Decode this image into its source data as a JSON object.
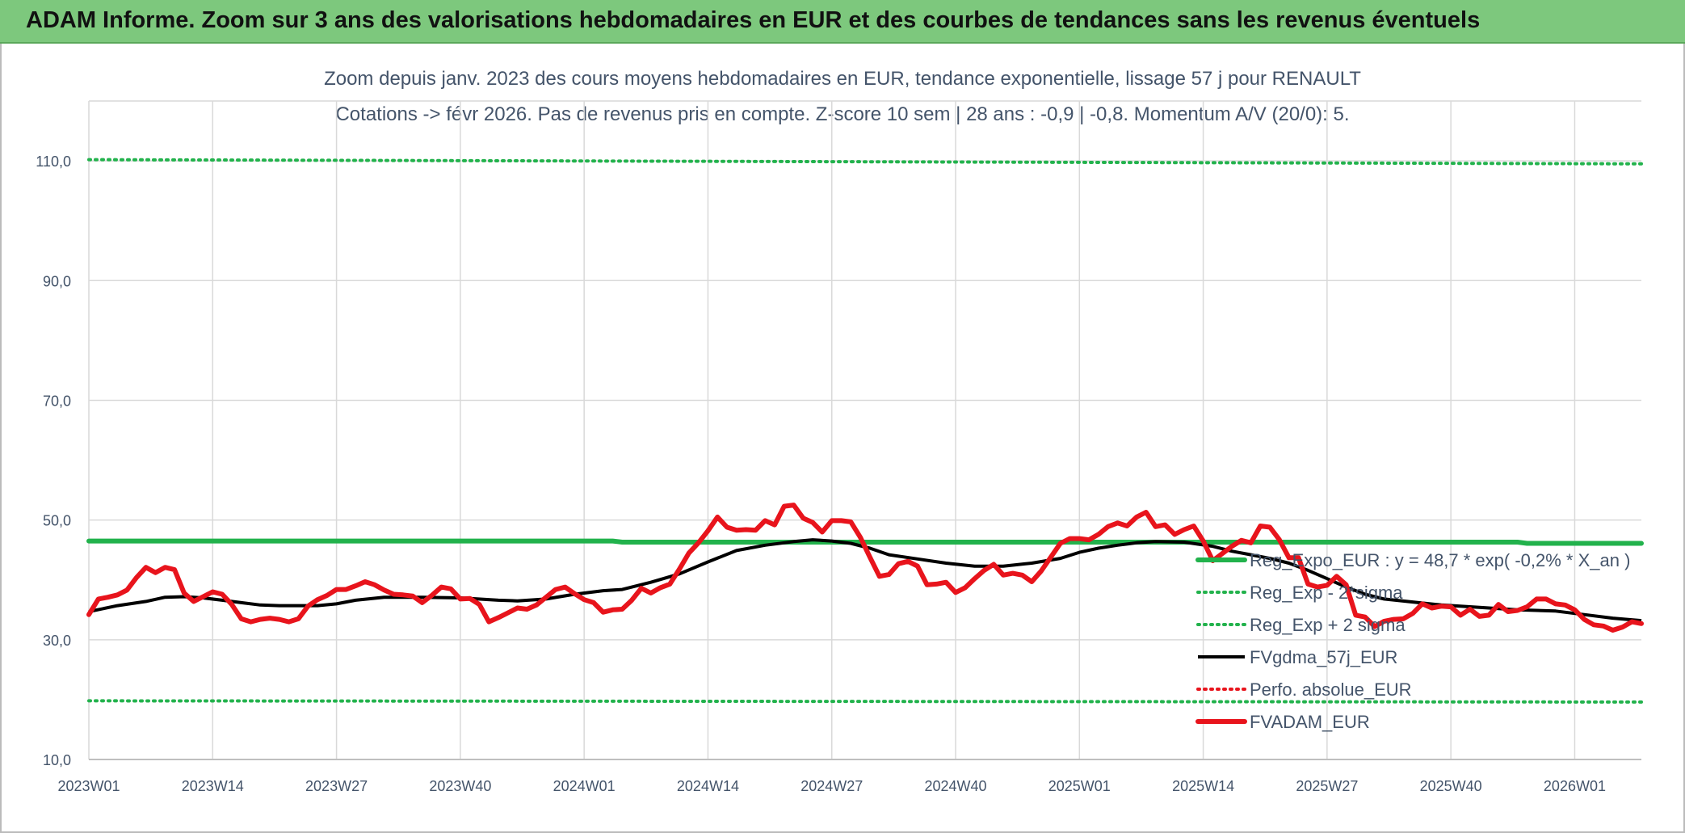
{
  "banner": {
    "title": "ADAM Informe. Zoom sur 3 ans des valorisations hebdomadaires en EUR et des courbes de tendances sans les revenus éventuels"
  },
  "colors": {
    "banner_bg": "#7dc87d",
    "trend_green": "#22b24c",
    "price_red": "#e8141c",
    "smooth_black": "#000000",
    "text": "#44546a"
  },
  "chart_data": {
    "type": "line",
    "title": "Zoom depuis janv. 2023 des cours moyens hebdomadaires en EUR, tendance exponentielle, lissage 57 j pour RENAULT",
    "subtitle": "Cotations -> févr 2026. Pas de revenus pris en compte. Z-score 10 sem | 28 ans : -0,9 | -0,8. Momentum A/V (20/0): 5.",
    "xlabel": "",
    "ylabel": "",
    "ylim": [
      10,
      120
    ],
    "yticks": [
      "10,0",
      "30,0",
      "50,0",
      "70,0",
      "90,0",
      "110,0"
    ],
    "ytick_values": [
      10,
      30,
      50,
      70,
      90,
      110
    ],
    "x_weeks": 164,
    "xticks": [
      "2023W01",
      "2023W14",
      "2023W27",
      "2023W40",
      "2024W01",
      "2024W14",
      "2024W27",
      "2024W40",
      "2025W01",
      "2025W14",
      "2025W27",
      "2025W40",
      "2026W01"
    ],
    "xtick_positions": [
      0,
      13,
      26,
      39,
      52,
      65,
      78,
      91,
      104,
      117,
      130,
      143,
      156
    ],
    "grid": true,
    "legend_position": "right",
    "series": [
      {
        "name": "Reg_Expo_EUR : y = 48,7 * exp( -0,2% *  X_an )",
        "style": "solid-thick",
        "color": "#22b24c",
        "points": [
          [
            0,
            46.5
          ],
          [
            55,
            46.5
          ],
          [
            56,
            46.3
          ],
          [
            150,
            46.3
          ],
          [
            151,
            46.1
          ],
          [
            163,
            46.1
          ]
        ]
      },
      {
        "name": "Reg_Exp - 2*sigma",
        "style": "dotted",
        "color": "#22b24c",
        "points": [
          [
            0,
            19.8
          ],
          [
            163,
            19.6
          ]
        ]
      },
      {
        "name": "Reg_Exp + 2 sigma",
        "style": "dotted",
        "color": "#22b24c",
        "points": [
          [
            0,
            110.2
          ],
          [
            163,
            109.5
          ]
        ]
      },
      {
        "name": "FVgdma_57j_EUR",
        "style": "solid",
        "color": "#000000",
        "points": [
          [
            0,
            34.7
          ],
          [
            3,
            35.7
          ],
          [
            6,
            36.4
          ],
          [
            8,
            37.1
          ],
          [
            10,
            37.2
          ],
          [
            12,
            37.0
          ],
          [
            14,
            36.6
          ],
          [
            16,
            36.2
          ],
          [
            18,
            35.8
          ],
          [
            20,
            35.7
          ],
          [
            24,
            35.7
          ],
          [
            26,
            36.0
          ],
          [
            28,
            36.6
          ],
          [
            31,
            37.1
          ],
          [
            35,
            37.1
          ],
          [
            39,
            37.0
          ],
          [
            43,
            36.6
          ],
          [
            45,
            36.5
          ],
          [
            48,
            36.8
          ],
          [
            51,
            37.6
          ],
          [
            54,
            38.2
          ],
          [
            56,
            38.4
          ],
          [
            59,
            39.6
          ],
          [
            62,
            41.0
          ],
          [
            65,
            43.0
          ],
          [
            68,
            44.9
          ],
          [
            71,
            45.8
          ],
          [
            74,
            46.4
          ],
          [
            76,
            46.7
          ],
          [
            78,
            46.5
          ],
          [
            80,
            46.1
          ],
          [
            82,
            45.3
          ],
          [
            84,
            44.2
          ],
          [
            87,
            43.5
          ],
          [
            90,
            42.8
          ],
          [
            93,
            42.3
          ],
          [
            96,
            42.3
          ],
          [
            99,
            42.8
          ],
          [
            102,
            43.6
          ],
          [
            104,
            44.6
          ],
          [
            106,
            45.3
          ],
          [
            108,
            45.8
          ],
          [
            110,
            46.2
          ],
          [
            112,
            46.4
          ],
          [
            115,
            46.3
          ],
          [
            118,
            45.6
          ],
          [
            120,
            44.8
          ],
          [
            122,
            44.2
          ],
          [
            124,
            43.6
          ],
          [
            126,
            42.8
          ],
          [
            128,
            41.6
          ],
          [
            130,
            40.2
          ],
          [
            132,
            38.8
          ],
          [
            134,
            37.6
          ],
          [
            136,
            36.8
          ],
          [
            139,
            36.3
          ],
          [
            142,
            35.8
          ],
          [
            146,
            35.4
          ],
          [
            150,
            35.0
          ],
          [
            154,
            34.8
          ],
          [
            157,
            34.2
          ],
          [
            160,
            33.6
          ],
          [
            163,
            33.2
          ]
        ]
      },
      {
        "name": "Perfo. absolue_EUR",
        "style": "dotted",
        "color": "#e8141c",
        "points": []
      },
      {
        "name": "FVADAM_EUR",
        "style": "solid-thick",
        "color": "#e8141c",
        "points": [
          [
            0,
            34.2
          ],
          [
            1,
            36.8
          ],
          [
            2,
            37.1
          ],
          [
            3,
            37.5
          ],
          [
            4,
            38.3
          ],
          [
            5,
            40.4
          ],
          [
            6,
            42.1
          ],
          [
            7,
            41.2
          ],
          [
            8,
            42.1
          ],
          [
            9,
            41.7
          ],
          [
            10,
            37.8
          ],
          [
            11,
            36.4
          ],
          [
            12,
            37.2
          ],
          [
            13,
            38.0
          ],
          [
            14,
            37.6
          ],
          [
            15,
            35.9
          ],
          [
            16,
            33.5
          ],
          [
            17,
            33.0
          ],
          [
            18,
            33.4
          ],
          [
            19,
            33.6
          ],
          [
            20,
            33.4
          ],
          [
            21,
            33.0
          ],
          [
            22,
            33.5
          ],
          [
            23,
            35.6
          ],
          [
            24,
            36.7
          ],
          [
            25,
            37.4
          ],
          [
            26,
            38.4
          ],
          [
            27,
            38.4
          ],
          [
            28,
            39.0
          ],
          [
            29,
            39.7
          ],
          [
            30,
            39.2
          ],
          [
            31,
            38.3
          ],
          [
            32,
            37.6
          ],
          [
            33,
            37.5
          ],
          [
            34,
            37.3
          ],
          [
            35,
            36.2
          ],
          [
            36,
            37.4
          ],
          [
            37,
            38.8
          ],
          [
            38,
            38.5
          ],
          [
            39,
            36.8
          ],
          [
            40,
            36.9
          ],
          [
            41,
            35.9
          ],
          [
            42,
            33.0
          ],
          [
            43,
            33.7
          ],
          [
            44,
            34.5
          ],
          [
            45,
            35.3
          ],
          [
            46,
            35.1
          ],
          [
            47,
            35.8
          ],
          [
            48,
            37.1
          ],
          [
            49,
            38.4
          ],
          [
            50,
            38.8
          ],
          [
            51,
            37.7
          ],
          [
            52,
            36.7
          ],
          [
            53,
            36.2
          ],
          [
            54,
            34.6
          ],
          [
            55,
            35.0
          ],
          [
            56,
            35.1
          ],
          [
            57,
            36.6
          ],
          [
            58,
            38.6
          ],
          [
            59,
            37.8
          ],
          [
            60,
            38.7
          ],
          [
            61,
            39.3
          ],
          [
            62,
            41.8
          ],
          [
            63,
            44.5
          ],
          [
            64,
            46.2
          ],
          [
            65,
            48.2
          ],
          [
            66,
            50.5
          ],
          [
            67,
            48.8
          ],
          [
            68,
            48.3
          ],
          [
            69,
            48.4
          ],
          [
            70,
            48.3
          ],
          [
            71,
            49.9
          ],
          [
            72,
            49.2
          ],
          [
            73,
            52.3
          ],
          [
            74,
            52.5
          ],
          [
            75,
            50.3
          ],
          [
            76,
            49.6
          ],
          [
            77,
            48.0
          ],
          [
            78,
            49.9
          ],
          [
            79,
            49.9
          ],
          [
            80,
            49.7
          ],
          [
            81,
            47.1
          ],
          [
            82,
            43.8
          ],
          [
            83,
            40.6
          ],
          [
            84,
            40.9
          ],
          [
            85,
            42.7
          ],
          [
            86,
            43.1
          ],
          [
            87,
            42.3
          ],
          [
            88,
            39.2
          ],
          [
            89,
            39.3
          ],
          [
            90,
            39.6
          ],
          [
            91,
            37.9
          ],
          [
            92,
            38.7
          ],
          [
            93,
            40.2
          ],
          [
            94,
            41.6
          ],
          [
            95,
            42.6
          ],
          [
            96,
            40.8
          ],
          [
            97,
            41.1
          ],
          [
            98,
            40.8
          ],
          [
            99,
            39.7
          ],
          [
            100,
            41.5
          ],
          [
            101,
            43.8
          ],
          [
            102,
            46.1
          ],
          [
            103,
            46.9
          ],
          [
            104,
            46.9
          ],
          [
            105,
            46.7
          ],
          [
            106,
            47.6
          ],
          [
            107,
            48.9
          ],
          [
            108,
            49.5
          ],
          [
            109,
            49.0
          ],
          [
            110,
            50.5
          ],
          [
            111,
            51.3
          ],
          [
            112,
            48.9
          ],
          [
            113,
            49.2
          ],
          [
            114,
            47.6
          ],
          [
            115,
            48.4
          ],
          [
            116,
            49.0
          ],
          [
            117,
            46.5
          ],
          [
            118,
            43.2
          ],
          [
            119,
            44.4
          ],
          [
            120,
            45.6
          ],
          [
            121,
            46.6
          ],
          [
            122,
            46.2
          ],
          [
            123,
            49.0
          ],
          [
            124,
            48.8
          ],
          [
            125,
            46.7
          ],
          [
            126,
            43.7
          ],
          [
            127,
            43.7
          ],
          [
            128,
            39.3
          ],
          [
            129,
            38.8
          ],
          [
            130,
            39.1
          ],
          [
            131,
            40.6
          ],
          [
            132,
            39.2
          ],
          [
            133,
            34.1
          ],
          [
            134,
            33.8
          ],
          [
            135,
            32.2
          ],
          [
            136,
            33.1
          ],
          [
            137,
            33.4
          ],
          [
            138,
            33.5
          ],
          [
            139,
            34.4
          ],
          [
            140,
            36.0
          ],
          [
            141,
            35.3
          ],
          [
            142,
            35.6
          ],
          [
            143,
            35.5
          ],
          [
            144,
            34.1
          ],
          [
            145,
            35.1
          ],
          [
            146,
            33.9
          ],
          [
            147,
            34.1
          ],
          [
            148,
            35.9
          ],
          [
            149,
            34.7
          ],
          [
            150,
            34.9
          ],
          [
            151,
            35.5
          ],
          [
            152,
            36.8
          ],
          [
            153,
            36.8
          ],
          [
            154,
            36.0
          ],
          [
            155,
            35.8
          ],
          [
            156,
            35.0
          ],
          [
            157,
            33.4
          ],
          [
            158,
            32.5
          ],
          [
            159,
            32.3
          ],
          [
            160,
            31.6
          ],
          [
            161,
            32.1
          ],
          [
            162,
            33.0
          ],
          [
            163,
            32.7
          ]
        ]
      }
    ]
  }
}
